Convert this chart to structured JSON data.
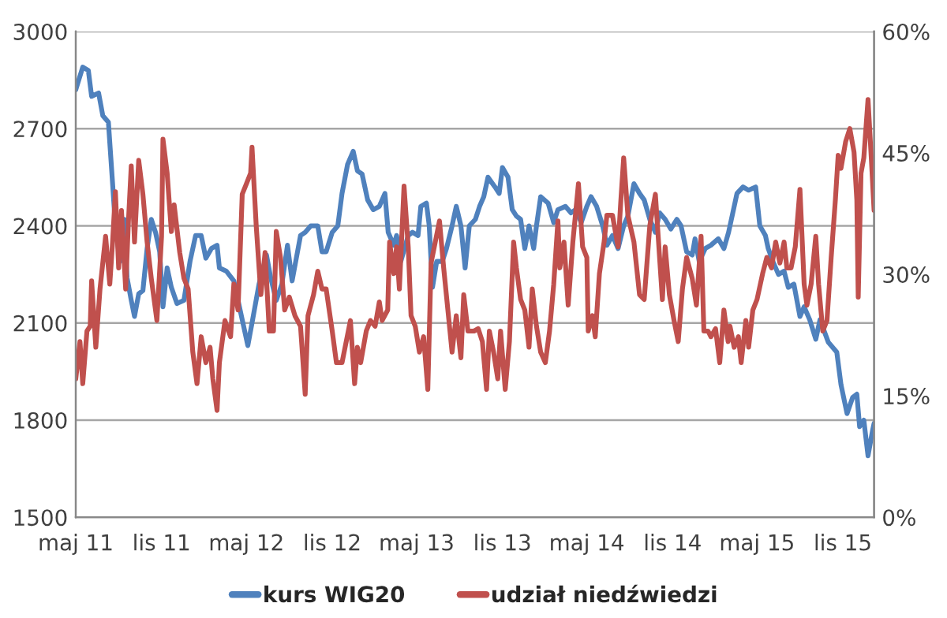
{
  "chart_data": {
    "type": "line",
    "xlim": [
      "2011-05-01",
      "2016-01-07"
    ],
    "xticks": [
      {
        "value": "2011-05-01",
        "label": "maj 11"
      },
      {
        "value": "2011-11-01",
        "label": "lis 11"
      },
      {
        "value": "2012-05-01",
        "label": "maj 12"
      },
      {
        "value": "2012-11-01",
        "label": "lis 12"
      },
      {
        "value": "2013-05-01",
        "label": "maj 13"
      },
      {
        "value": "2013-11-01",
        "label": "lis 13"
      },
      {
        "value": "2014-05-01",
        "label": "maj 14"
      },
      {
        "value": "2014-11-01",
        "label": "lis 14"
      },
      {
        "value": "2015-05-01",
        "label": "maj 15"
      },
      {
        "value": "2015-11-01",
        "label": "lis 15"
      }
    ],
    "ylim": [
      1500,
      3000
    ],
    "yticks": [
      1500,
      1800,
      2100,
      2400,
      2700,
      3000
    ],
    "y2lim": [
      0,
      60
    ],
    "y2ticks": [
      {
        "value": 0,
        "label": "0%"
      },
      {
        "value": 15,
        "label": "15%"
      },
      {
        "value": 30,
        "label": "30%"
      },
      {
        "value": 45,
        "label": "45%"
      },
      {
        "value": 60,
        "label": "60%"
      }
    ],
    "grid": "y",
    "legend": "bottom",
    "marker": "none",
    "line_style": "solid",
    "series": [
      {
        "name": "kurs WIG20",
        "color": "#4f81bd",
        "x": [
          "2011-05-01",
          "2011-05-16",
          "2011-05-28",
          "2011-06-04",
          "2011-06-19",
          "2011-06-28",
          "2011-07-10",
          "2011-07-19",
          "2011-07-25",
          "2011-08-04",
          "2011-08-13",
          "2011-08-19",
          "2011-08-28",
          "2011-09-04",
          "2011-09-13",
          "2011-09-22",
          "2011-10-01",
          "2011-10-10",
          "2011-10-19",
          "2011-10-28",
          "2011-11-04",
          "2011-11-13",
          "2011-11-22",
          "2011-12-04",
          "2011-12-19",
          "2012-01-01",
          "2012-01-13",
          "2012-01-25",
          "2012-02-04",
          "2012-02-16",
          "2012-02-28",
          "2012-03-04",
          "2012-03-19",
          "2012-04-04",
          "2012-04-22",
          "2012-05-04",
          "2012-05-13",
          "2012-05-28",
          "2012-06-13",
          "2012-06-22",
          "2012-07-04",
          "2012-07-16",
          "2012-07-28",
          "2012-08-07",
          "2012-08-25",
          "2012-09-04",
          "2012-09-16",
          "2012-10-01",
          "2012-10-10",
          "2012-10-19",
          "2012-11-01",
          "2012-11-13",
          "2012-11-22",
          "2012-12-04",
          "2012-12-16",
          "2012-12-25",
          "2013-01-04",
          "2013-01-16",
          "2013-01-28",
          "2013-02-10",
          "2013-02-22",
          "2013-03-01",
          "2013-03-13",
          "2013-03-19",
          "2013-03-28",
          "2013-04-13",
          "2013-04-22",
          "2013-05-04",
          "2013-05-10",
          "2013-05-22",
          "2013-05-28",
          "2013-06-04",
          "2013-06-13",
          "2013-06-25",
          "2013-07-04",
          "2013-07-16",
          "2013-07-25",
          "2013-08-04",
          "2013-08-13",
          "2013-08-22",
          "2013-09-04",
          "2013-09-13",
          "2013-09-22",
          "2013-10-01",
          "2013-10-16",
          "2013-10-25",
          "2013-11-01",
          "2013-11-13",
          "2013-11-22",
          "2013-12-01",
          "2013-12-10",
          "2013-12-19",
          "2013-12-28",
          "2014-01-07",
          "2014-01-13",
          "2014-01-22",
          "2014-02-07",
          "2014-02-19",
          "2014-02-28",
          "2014-03-16",
          "2014-03-28",
          "2014-04-07",
          "2014-04-19",
          "2014-05-01",
          "2014-05-10",
          "2014-05-22",
          "2014-06-04",
          "2014-06-13",
          "2014-06-25",
          "2014-07-07",
          "2014-07-19",
          "2014-07-28",
          "2014-08-10",
          "2014-08-22",
          "2014-09-01",
          "2014-09-13",
          "2014-09-25",
          "2014-10-04",
          "2014-10-16",
          "2014-10-28",
          "2014-11-10",
          "2014-11-19",
          "2014-12-01",
          "2014-12-13",
          "2014-12-19",
          "2014-12-28",
          "2015-01-10",
          "2015-01-22",
          "2015-02-07",
          "2015-02-19",
          "2015-03-01",
          "2015-03-10",
          "2015-03-19",
          "2015-04-01",
          "2015-04-13",
          "2015-04-28",
          "2015-05-07",
          "2015-05-19",
          "2015-05-25",
          "2015-06-04",
          "2015-06-16",
          "2015-06-28",
          "2015-07-07",
          "2015-07-19",
          "2015-08-01",
          "2015-08-10",
          "2015-08-22",
          "2015-09-04",
          "2015-09-13",
          "2015-10-01",
          "2015-10-19",
          "2015-10-28",
          "2015-11-10",
          "2015-11-22",
          "2015-12-01",
          "2015-12-07",
          "2015-12-16",
          "2015-12-25",
          "2016-01-04",
          "2016-01-07"
        ],
        "values": [
          2820,
          2890,
          2880,
          2800,
          2810,
          2740,
          2720,
          2530,
          2400,
          2290,
          2420,
          2240,
          2170,
          2120,
          2190,
          2200,
          2330,
          2420,
          2380,
          2320,
          2150,
          2270,
          2210,
          2160,
          2170,
          2290,
          2370,
          2370,
          2300,
          2330,
          2340,
          2270,
          2260,
          2230,
          2110,
          2030,
          2100,
          2220,
          2310,
          2240,
          2170,
          2220,
          2340,
          2230,
          2370,
          2380,
          2400,
          2400,
          2320,
          2320,
          2380,
          2400,
          2500,
          2590,
          2630,
          2570,
          2560,
          2480,
          2450,
          2460,
          2500,
          2380,
          2340,
          2370,
          2290,
          2370,
          2380,
          2370,
          2460,
          2470,
          2400,
          2210,
          2290,
          2290,
          2330,
          2400,
          2460,
          2400,
          2270,
          2400,
          2420,
          2460,
          2490,
          2550,
          2520,
          2500,
          2580,
          2550,
          2450,
          2430,
          2420,
          2330,
          2400,
          2330,
          2400,
          2490,
          2470,
          2410,
          2450,
          2460,
          2440,
          2450,
          2410,
          2460,
          2490,
          2460,
          2400,
          2340,
          2370,
          2330,
          2400,
          2430,
          2530,
          2500,
          2480,
          2420,
          2380,
          2440,
          2420,
          2390,
          2420,
          2400,
          2320,
          2310,
          2360,
          2290,
          2330,
          2340,
          2360,
          2330,
          2380,
          2440,
          2500,
          2520,
          2510,
          2520,
          2400,
          2370,
          2330,
          2290,
          2250,
          2260,
          2210,
          2220,
          2120,
          2150,
          2110,
          2050,
          2110,
          2040,
          2010,
          1910,
          1820,
          1870,
          1880,
          1780,
          1800,
          1690,
          1770,
          1790
        ]
      },
      {
        "name": "udział niedźwiedzi",
        "color": "#c0504d",
        "axis": "y2",
        "x": [
          "2011-05-01",
          "2011-05-10",
          "2011-05-16",
          "2011-05-25",
          "2011-06-01",
          "2011-06-04",
          "2011-06-13",
          "2011-06-22",
          "2011-07-04",
          "2011-07-13",
          "2011-07-19",
          "2011-07-25",
          "2011-08-01",
          "2011-08-07",
          "2011-08-16",
          "2011-08-22",
          "2011-08-28",
          "2011-09-04",
          "2011-09-13",
          "2011-09-22",
          "2011-10-01",
          "2011-10-10",
          "2011-10-22",
          "2011-11-01",
          "2011-11-04",
          "2011-11-13",
          "2011-11-22",
          "2011-11-28",
          "2011-12-10",
          "2011-12-19",
          "2011-12-28",
          "2012-01-07",
          "2012-01-16",
          "2012-01-25",
          "2012-02-04",
          "2012-02-13",
          "2012-02-19",
          "2012-02-28",
          "2012-03-04",
          "2012-03-16",
          "2012-03-28",
          "2012-04-04",
          "2012-04-13",
          "2012-04-22",
          "2012-05-01",
          "2012-05-10",
          "2012-05-13",
          "2012-05-22",
          "2012-06-01",
          "2012-06-10",
          "2012-06-19",
          "2012-06-28",
          "2012-07-04",
          "2012-07-13",
          "2012-07-22",
          "2012-08-01",
          "2012-08-13",
          "2012-08-25",
          "2012-09-04",
          "2012-09-10",
          "2012-09-22",
          "2012-10-01",
          "2012-10-10",
          "2012-10-19",
          "2012-11-01",
          "2012-11-10",
          "2012-11-22",
          "2012-12-10",
          "2012-12-19",
          "2012-12-25",
          "2013-01-01",
          "2013-01-13",
          "2013-01-22",
          "2013-02-01",
          "2013-02-10",
          "2013-02-16",
          "2013-02-28",
          "2013-03-04",
          "2013-03-13",
          "2013-03-19",
          "2013-03-25",
          "2013-04-04",
          "2013-04-13",
          "2013-04-19",
          "2013-04-28",
          "2013-05-07",
          "2013-05-16",
          "2013-05-25",
          "2013-06-01",
          "2013-06-10",
          "2013-06-19",
          "2013-06-28",
          "2013-07-07",
          "2013-07-16",
          "2013-07-25",
          "2013-08-04",
          "2013-08-10",
          "2013-08-19",
          "2013-09-01",
          "2013-09-10",
          "2013-09-19",
          "2013-09-28",
          "2013-10-04",
          "2013-10-13",
          "2013-10-22",
          "2013-10-28",
          "2013-11-07",
          "2013-11-16",
          "2013-11-25",
          "2013-12-01",
          "2013-12-10",
          "2013-12-19",
          "2013-12-28",
          "2014-01-04",
          "2014-01-13",
          "2014-01-22",
          "2014-02-01",
          "2014-02-10",
          "2014-02-19",
          "2014-02-28",
          "2014-03-04",
          "2014-03-13",
          "2014-03-22",
          "2014-04-01",
          "2014-04-13",
          "2014-04-22",
          "2014-05-01",
          "2014-05-04",
          "2014-05-13",
          "2014-05-19",
          "2014-05-28",
          "2014-06-07",
          "2014-06-13",
          "2014-06-25",
          "2014-07-07",
          "2014-07-13",
          "2014-07-19",
          "2014-07-28",
          "2014-08-10",
          "2014-08-22",
          "2014-09-01",
          "2014-09-13",
          "2014-09-25",
          "2014-10-01",
          "2014-10-10",
          "2014-10-16",
          "2014-10-25",
          "2014-11-04",
          "2014-11-13",
          "2014-11-22",
          "2014-12-01",
          "2014-12-13",
          "2014-12-22",
          "2015-01-01",
          "2015-01-07",
          "2015-01-16",
          "2015-01-22",
          "2015-02-01",
          "2015-02-10",
          "2015-02-19",
          "2015-02-28",
          "2015-03-04",
          "2015-03-13",
          "2015-03-22",
          "2015-03-28",
          "2015-04-07",
          "2015-04-13",
          "2015-04-22",
          "2015-05-01",
          "2015-05-13",
          "2015-05-22",
          "2015-06-01",
          "2015-06-10",
          "2015-06-19",
          "2015-06-28",
          "2015-07-04",
          "2015-07-13",
          "2015-07-22",
          "2015-08-01",
          "2015-08-10",
          "2015-08-16",
          "2015-08-25",
          "2015-09-04",
          "2015-09-10",
          "2015-09-19",
          "2015-09-28",
          "2015-10-07",
          "2015-10-16",
          "2015-10-22",
          "2015-10-28",
          "2015-11-07",
          "2015-11-16",
          "2015-11-25",
          "2015-12-01",
          "2015-12-04",
          "2015-12-10",
          "2015-12-16",
          "2015-12-25",
          "2016-01-01",
          "2016-01-07"
        ],
        "values": [
          17.1,
          21.7,
          16.5,
          23.0,
          23.6,
          29.2,
          21.0,
          28.2,
          34.7,
          28.8,
          34.0,
          40.2,
          30.8,
          37.9,
          28.2,
          36.6,
          43.4,
          34.0,
          44.1,
          39.9,
          34.0,
          29.5,
          24.3,
          34.7,
          46.7,
          42.5,
          35.3,
          38.6,
          32.7,
          29.5,
          28.2,
          20.4,
          16.5,
          22.3,
          19.1,
          21.0,
          17.1,
          13.2,
          19.1,
          24.3,
          22.3,
          28.8,
          25.6,
          39.9,
          41.2,
          42.5,
          45.7,
          36.0,
          27.5,
          32.7,
          23.0,
          23.0,
          35.3,
          32.1,
          25.6,
          27.2,
          24.9,
          23.6,
          15.2,
          24.9,
          27.5,
          30.4,
          28.2,
          28.2,
          23.0,
          19.1,
          19.1,
          24.3,
          16.5,
          21.0,
          19.1,
          23.0,
          24.3,
          23.6,
          26.6,
          24.3,
          25.6,
          34.0,
          30.1,
          33.4,
          28.2,
          40.9,
          33.4,
          24.9,
          23.6,
          20.4,
          22.3,
          15.8,
          31.4,
          34.0,
          36.6,
          30.8,
          25.6,
          20.4,
          24.9,
          19.7,
          27.5,
          23.0,
          23.0,
          23.3,
          21.7,
          15.8,
          23.0,
          20.4,
          17.1,
          23.0,
          15.8,
          21.7,
          34.0,
          30.8,
          26.9,
          25.6,
          21.0,
          28.2,
          23.6,
          20.4,
          19.1,
          23.0,
          28.8,
          36.6,
          30.8,
          34.0,
          26.2,
          34.0,
          41.2,
          33.4,
          32.1,
          23.0,
          24.9,
          22.3,
          30.1,
          34.0,
          37.3,
          37.3,
          33.4,
          39.2,
          44.4,
          37.3,
          34.0,
          27.5,
          26.9,
          36.0,
          39.9,
          34.7,
          26.9,
          33.4,
          27.5,
          24.3,
          21.7,
          28.2,
          32.1,
          29.5,
          26.2,
          34.7,
          23.0,
          23.0,
          22.3,
          23.3,
          19.1,
          25.6,
          21.7,
          23.6,
          21.0,
          22.3,
          19.1,
          24.3,
          21.0,
          25.6,
          26.9,
          30.1,
          32.1,
          30.8,
          34.0,
          31.4,
          34.0,
          30.8,
          30.8,
          33.4,
          40.5,
          28.8,
          26.2,
          28.8,
          34.7,
          28.8,
          23.0,
          24.3,
          32.1,
          39.2,
          44.7,
          43.1,
          46.4,
          48.0,
          45.1,
          39.2,
          27.2,
          42.5,
          44.4,
          51.6,
          44.4,
          37.9
        ]
      }
    ]
  }
}
